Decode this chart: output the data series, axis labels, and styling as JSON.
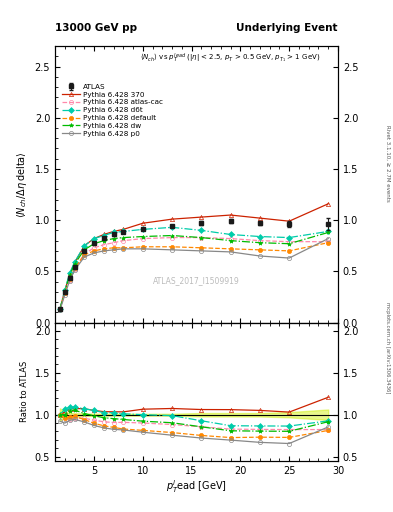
{
  "title_left": "13000 GeV pp",
  "title_right": "Underlying Event",
  "annotation": "ATLAS_2017_I1509919",
  "xlabel": "p$_T^l$ead [GeV]",
  "ylabel_main": "$\\langle N_{ch}/ \\Delta\\eta\\, \\mathrm{delta}\\rangle$",
  "ylabel_ratio": "Ratio to ATLAS",
  "ylim_main": [
    0,
    2.7
  ],
  "ylim_ratio": [
    0.45,
    2.1
  ],
  "xlim": [
    1,
    30
  ],
  "yticks_main": [
    0.0,
    0.5,
    1.0,
    1.5,
    2.0,
    2.5
  ],
  "yticks_ratio": [
    0.5,
    1.0,
    1.5,
    2.0
  ],
  "atlas_x": [
    1.5,
    2.0,
    2.5,
    3.0,
    4.0,
    5.0,
    6.0,
    7.0,
    8.0,
    10.0,
    13.0,
    16.0,
    19.0,
    22.0,
    25.0,
    29.0
  ],
  "atlas_y": [
    0.13,
    0.3,
    0.44,
    0.54,
    0.7,
    0.78,
    0.83,
    0.86,
    0.88,
    0.91,
    0.94,
    0.97,
    0.99,
    0.97,
    0.96,
    0.96
  ],
  "atlas_yerr": [
    0.01,
    0.01,
    0.01,
    0.01,
    0.01,
    0.01,
    0.01,
    0.01,
    0.01,
    0.01,
    0.01,
    0.02,
    0.02,
    0.02,
    0.03,
    0.06
  ],
  "p370_x": [
    1.5,
    2.0,
    2.5,
    3.0,
    4.0,
    5.0,
    6.0,
    7.0,
    8.0,
    10.0,
    13.0,
    16.0,
    19.0,
    22.0,
    25.0,
    29.0
  ],
  "p370_y": [
    0.13,
    0.31,
    0.47,
    0.58,
    0.75,
    0.82,
    0.86,
    0.89,
    0.91,
    0.97,
    1.01,
    1.03,
    1.05,
    1.02,
    0.99,
    1.16
  ],
  "patlas_x": [
    1.5,
    2.0,
    2.5,
    3.0,
    4.0,
    5.0,
    6.0,
    7.0,
    8.0,
    10.0,
    13.0,
    16.0,
    19.0,
    22.0,
    25.0,
    29.0
  ],
  "patlas_y": [
    0.13,
    0.29,
    0.42,
    0.52,
    0.67,
    0.73,
    0.76,
    0.78,
    0.8,
    0.82,
    0.83,
    0.83,
    0.82,
    0.8,
    0.79,
    0.79
  ],
  "pd6t_x": [
    1.5,
    2.0,
    2.5,
    3.0,
    4.0,
    5.0,
    6.0,
    7.0,
    8.0,
    10.0,
    13.0,
    16.0,
    19.0,
    22.0,
    25.0,
    29.0
  ],
  "pd6t_y": [
    0.13,
    0.32,
    0.48,
    0.59,
    0.75,
    0.82,
    0.85,
    0.88,
    0.89,
    0.91,
    0.93,
    0.9,
    0.86,
    0.84,
    0.83,
    0.89
  ],
  "pdefault_x": [
    1.5,
    2.0,
    2.5,
    3.0,
    4.0,
    5.0,
    6.0,
    7.0,
    8.0,
    10.0,
    13.0,
    16.0,
    19.0,
    22.0,
    25.0,
    29.0
  ],
  "pdefault_y": [
    0.13,
    0.29,
    0.43,
    0.53,
    0.66,
    0.7,
    0.72,
    0.73,
    0.73,
    0.74,
    0.74,
    0.73,
    0.72,
    0.71,
    0.7,
    0.78
  ],
  "pdw_x": [
    1.5,
    2.0,
    2.5,
    3.0,
    4.0,
    5.0,
    6.0,
    7.0,
    8.0,
    10.0,
    13.0,
    16.0,
    19.0,
    22.0,
    25.0,
    29.0
  ],
  "pdw_y": [
    0.13,
    0.3,
    0.46,
    0.57,
    0.71,
    0.77,
    0.8,
    0.82,
    0.83,
    0.84,
    0.85,
    0.83,
    0.8,
    0.78,
    0.77,
    0.88
  ],
  "pp0_x": [
    1.5,
    2.0,
    2.5,
    3.0,
    4.0,
    5.0,
    6.0,
    7.0,
    8.0,
    10.0,
    13.0,
    16.0,
    19.0,
    22.0,
    25.0,
    29.0
  ],
  "pp0_y": [
    0.12,
    0.27,
    0.41,
    0.51,
    0.64,
    0.68,
    0.7,
    0.71,
    0.72,
    0.72,
    0.71,
    0.7,
    0.69,
    0.65,
    0.63,
    0.82
  ],
  "colors": {
    "atlas": "#1a1a1a",
    "p370": "#cc2200",
    "patlas": "#ff88aa",
    "pd6t": "#00ccaa",
    "pdefault": "#ff8800",
    "pdw": "#00bb00",
    "pp0": "#888888"
  },
  "ratio_band_color": "#ccee00",
  "ratio_band_alpha": 0.45
}
